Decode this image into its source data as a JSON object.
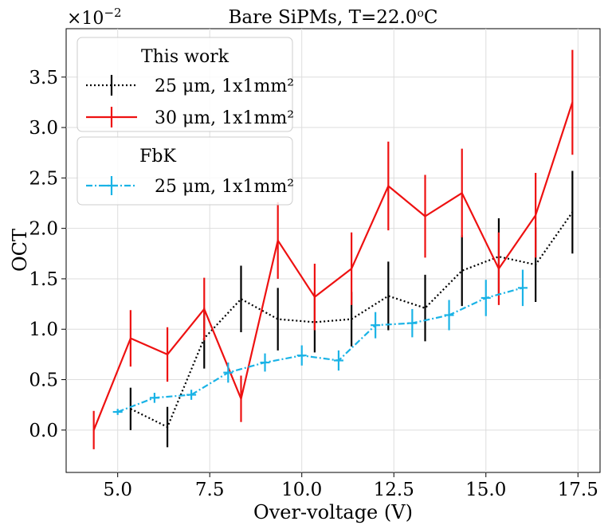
{
  "chart_data": {
    "type": "line",
    "title": "Bare SiPMs, T=22.0°C",
    "title_parts": {
      "prefix": "Bare SiPMs, T=22.0",
      "superscript": "o",
      "suffix": "C"
    },
    "xlabel": "Over-voltage (V)",
    "ylabel": "OCT",
    "offset_text": {
      "base": "×10",
      "exponent": "−2"
    },
    "xlim": [
      3.6,
      18.1
    ],
    "ylim": [
      -0.42,
      3.98
    ],
    "grid": true,
    "x_ticks": [
      5.0,
      7.5,
      10.0,
      12.5,
      15.0,
      17.5
    ],
    "x_tick_labels": [
      "5.0",
      "7.5",
      "10.0",
      "12.5",
      "15.0",
      "17.5"
    ],
    "y_ticks": [
      0.0,
      0.5,
      1.0,
      1.5,
      2.0,
      2.5,
      3.0,
      3.5
    ],
    "y_tick_labels": [
      "0.0",
      "0.5",
      "1.0",
      "1.5",
      "2.0",
      "2.5",
      "3.0",
      "3.5"
    ],
    "legend_placement": "top-left",
    "legend_groups": [
      {
        "title": "This work",
        "entries": [
          {
            "series_id": "this_25",
            "label": "25 μm, 1x1mm²"
          },
          {
            "series_id": "this_30",
            "label": "30 μm, 1x1mm²"
          }
        ]
      },
      {
        "title": "FbK",
        "entries": [
          {
            "series_id": "fbk_25",
            "label": "25 μm, 1x1mm²"
          }
        ]
      }
    ],
    "series": [
      {
        "id": "this_25",
        "name": "This work 25 μm, 1x1mm²",
        "color": "#000000",
        "line_style": "dotted",
        "x": [
          5.35,
          6.35,
          7.35,
          8.35,
          9.35,
          10.35,
          11.35,
          12.35,
          13.35,
          14.35,
          15.35,
          16.35,
          17.35
        ],
        "y": [
          0.21,
          0.03,
          0.91,
          1.3,
          1.1,
          1.07,
          1.1,
          1.33,
          1.21,
          1.58,
          1.72,
          1.64,
          2.16
        ],
        "yerr": [
          0.21,
          0.2,
          0.3,
          0.33,
          0.31,
          0.3,
          0.27,
          0.34,
          0.33,
          0.35,
          0.38,
          0.37,
          0.41
        ]
      },
      {
        "id": "this_30",
        "name": "This work 30 μm, 1x1mm²",
        "color": "#ee1111",
        "line_style": "solid",
        "x": [
          4.35,
          5.35,
          6.35,
          7.35,
          8.35,
          9.35,
          10.35,
          11.35,
          12.35,
          13.35,
          14.35,
          15.35,
          16.35,
          17.35
        ],
        "y": [
          0.0,
          0.91,
          0.75,
          1.2,
          0.31,
          1.88,
          1.32,
          1.6,
          2.42,
          2.12,
          2.35,
          1.6,
          2.13,
          3.25
        ],
        "yerr": [
          0.19,
          0.28,
          0.27,
          0.31,
          0.23,
          0.38,
          0.33,
          0.36,
          0.44,
          0.41,
          0.44,
          0.36,
          0.42,
          0.52
        ]
      },
      {
        "id": "fbk_25",
        "name": "FbK 25 μm, 1x1mm²",
        "color": "#1ab3e6",
        "line_style": "dashdot",
        "x": [
          5.0,
          6.0,
          7.0,
          8.0,
          9.0,
          10.0,
          11.0,
          12.0,
          13.0,
          14.0,
          15.0,
          16.0
        ],
        "y": [
          0.18,
          0.32,
          0.35,
          0.57,
          0.67,
          0.74,
          0.69,
          1.04,
          1.06,
          1.14,
          1.31,
          1.41
        ],
        "yerr": [
          0.03,
          0.05,
          0.05,
          0.1,
          0.09,
          0.1,
          0.1,
          0.13,
          0.14,
          0.15,
          0.18,
          0.18
        ]
      }
    ]
  }
}
